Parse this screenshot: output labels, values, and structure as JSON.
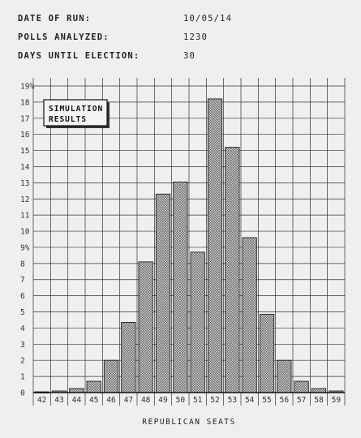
{
  "info": {
    "date_label": "DATE OF RUN:",
    "date_value": "10/05/14",
    "polls_label": "POLLS ANALYZED:",
    "polls_value": "1230",
    "days_label": "DAYS UNTIL ELECTION:",
    "days_value": "30"
  },
  "legend": {
    "line1": "SIMULATION",
    "line2": "RESULTS"
  },
  "chart_data": {
    "type": "bar",
    "categories": [
      "42",
      "43",
      "44",
      "45",
      "46",
      "47",
      "48",
      "49",
      "50",
      "51",
      "52",
      "53",
      "54",
      "55",
      "56",
      "57",
      "58",
      "59"
    ],
    "values": [
      0.05,
      0.1,
      0.25,
      0.7,
      2.0,
      4.35,
      8.1,
      12.3,
      13.05,
      8.7,
      18.2,
      15.2,
      9.6,
      4.85,
      2.0,
      0.7,
      0.25,
      0.1
    ],
    "title": "",
    "xlabel": "REPUBLICAN SEATS",
    "ylabel": "",
    "ylim": [
      0,
      19
    ],
    "ytick_labels": [
      "0",
      "1",
      "2",
      "3",
      "4",
      "5",
      "6",
      "7",
      "8",
      "9%",
      "10",
      "11",
      "12",
      "13",
      "14",
      "15",
      "16",
      "17",
      "18",
      "19%"
    ],
    "grid": true,
    "legend_position": "top-left"
  }
}
